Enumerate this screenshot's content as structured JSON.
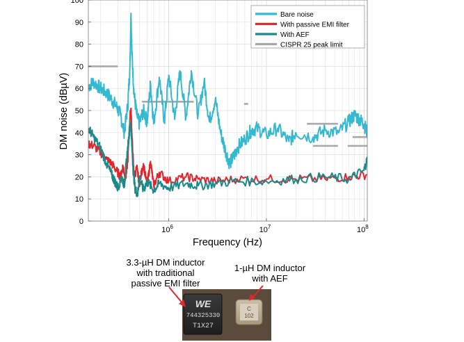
{
  "chart_data": {
    "type": "line",
    "xlabel": "Frequency (Hz)",
    "ylabel": "DM noise (dBµV)",
    "x_scale": "log",
    "xlim": [
      150000,
      108000000
    ],
    "ylim": [
      0,
      100
    ],
    "y_ticks": [
      "0",
      "10",
      "20",
      "30",
      "40",
      "50",
      "60",
      "70",
      "80",
      "90",
      "100"
    ],
    "x_ticks": [
      {
        "value": 1000000,
        "base": "10",
        "exp": "6"
      },
      {
        "value": 10000000,
        "base": "10",
        "exp": "7"
      },
      {
        "value": 100000000,
        "base": "10",
        "exp": "8"
      }
    ],
    "grid": true,
    "legend_position": "top-right",
    "series": [
      {
        "name": "Bare noise",
        "color": "#35b9d1",
        "points": [
          [
            150000,
            61
          ],
          [
            170000,
            63
          ],
          [
            200000,
            60
          ],
          [
            230000,
            58
          ],
          [
            260000,
            55
          ],
          [
            290000,
            52
          ],
          [
            320000,
            48
          ],
          [
            350000,
            40
          ],
          [
            380000,
            52
          ],
          [
            400000,
            70
          ],
          [
            410000,
            94
          ],
          [
            420000,
            75
          ],
          [
            440000,
            58
          ],
          [
            470000,
            48
          ],
          [
            500000,
            44
          ],
          [
            550000,
            50
          ],
          [
            600000,
            45
          ],
          [
            650000,
            62
          ],
          [
            700000,
            44
          ],
          [
            800000,
            65
          ],
          [
            900000,
            45
          ],
          [
            1000000,
            66
          ],
          [
            1150000,
            46
          ],
          [
            1300000,
            68
          ],
          [
            1500000,
            47
          ],
          [
            1700000,
            68
          ],
          [
            2000000,
            48
          ],
          [
            2300000,
            63
          ],
          [
            2600000,
            45
          ],
          [
            3000000,
            55
          ],
          [
            3400000,
            40
          ],
          [
            3800000,
            32
          ],
          [
            4200000,
            26
          ],
          [
            4600000,
            29
          ],
          [
            5000000,
            33
          ],
          [
            6000000,
            37
          ],
          [
            7000000,
            41
          ],
          [
            8000000,
            42
          ],
          [
            10000000,
            39
          ],
          [
            13000000,
            42
          ],
          [
            17000000,
            36
          ],
          [
            20000000,
            40
          ],
          [
            30000000,
            38
          ],
          [
            40000000,
            41
          ],
          [
            55000000,
            40
          ],
          [
            70000000,
            45
          ],
          [
            80000000,
            48
          ],
          [
            90000000,
            46
          ],
          [
            100000000,
            44
          ],
          [
            108000000,
            40
          ]
        ]
      },
      {
        "name": "With passive EMI filter",
        "color": "#e3262d",
        "points": [
          [
            150000,
            35
          ],
          [
            170000,
            34
          ],
          [
            200000,
            31
          ],
          [
            230000,
            28
          ],
          [
            260000,
            26
          ],
          [
            290000,
            23
          ],
          [
            320000,
            20
          ],
          [
            340000,
            25
          ],
          [
            360000,
            19
          ],
          [
            380000,
            27
          ],
          [
            400000,
            47
          ],
          [
            410000,
            51
          ],
          [
            420000,
            38
          ],
          [
            440000,
            20
          ],
          [
            470000,
            24
          ],
          [
            500000,
            17
          ],
          [
            550000,
            26
          ],
          [
            600000,
            16
          ],
          [
            650000,
            27
          ],
          [
            700000,
            16
          ],
          [
            800000,
            22
          ],
          [
            1000000,
            18
          ],
          [
            1500000,
            20
          ],
          [
            2000000,
            19
          ],
          [
            3000000,
            18
          ],
          [
            5000000,
            19
          ],
          [
            10000000,
            19
          ],
          [
            20000000,
            19
          ],
          [
            40000000,
            19
          ],
          [
            70000000,
            20
          ],
          [
            108000000,
            21
          ]
        ]
      },
      {
        "name": "With AEF",
        "color": "#1a8a8a",
        "points": [
          [
            150000,
            42
          ],
          [
            170000,
            38
          ],
          [
            200000,
            33
          ],
          [
            230000,
            26
          ],
          [
            260000,
            21
          ],
          [
            280000,
            18
          ],
          [
            300000,
            15
          ],
          [
            330000,
            20
          ],
          [
            350000,
            16
          ],
          [
            370000,
            28
          ],
          [
            390000,
            38
          ],
          [
            400000,
            44
          ],
          [
            410000,
            42
          ],
          [
            430000,
            24
          ],
          [
            450000,
            15
          ],
          [
            480000,
            12
          ],
          [
            500000,
            20
          ],
          [
            550000,
            14
          ],
          [
            600000,
            18
          ],
          [
            700000,
            14
          ],
          [
            800000,
            17
          ],
          [
            1000000,
            15
          ],
          [
            1500000,
            17
          ],
          [
            2000000,
            16
          ],
          [
            3000000,
            17
          ],
          [
            5000000,
            18
          ],
          [
            10000000,
            18
          ],
          [
            20000000,
            19
          ],
          [
            40000000,
            20
          ],
          [
            70000000,
            19
          ],
          [
            100000000,
            23
          ],
          [
            108000000,
            28
          ]
        ]
      },
      {
        "name": "CISPR 25 peak limit",
        "color": "#a8a8a8",
        "segments": [
          [
            [
              150000,
              70
            ],
            [
              300000,
              70
            ]
          ],
          [
            [
              530000,
              54
            ],
            [
              1800000,
              54
            ]
          ],
          [
            [
              5900000,
              53
            ],
            [
              6500000,
              53
            ]
          ],
          [
            [
              26000000,
              44
            ],
            [
              30000000,
              44
            ]
          ],
          [
            [
              30000000,
              44
            ],
            [
              54000000,
              44
            ]
          ],
          [
            [
              30000000,
              34
            ],
            [
              54000000,
              34
            ]
          ],
          [
            [
              76000000,
              38
            ],
            [
              108000000,
              38
            ]
          ],
          [
            [
              68000000,
              34
            ],
            [
              108000000,
              34
            ]
          ]
        ]
      }
    ]
  },
  "annotations": {
    "left_line1": "3.3-µH DM inductor",
    "left_line2": "with traditional",
    "left_line3": "passive EMI filter",
    "right_line1": "1-µH DM inductor",
    "right_line2": "with AEF",
    "left_part_marking_line1": "744325330",
    "left_part_marking_line2": "T1X27",
    "right_part_marking_line1": "C",
    "right_part_marking_line2": "102"
  }
}
